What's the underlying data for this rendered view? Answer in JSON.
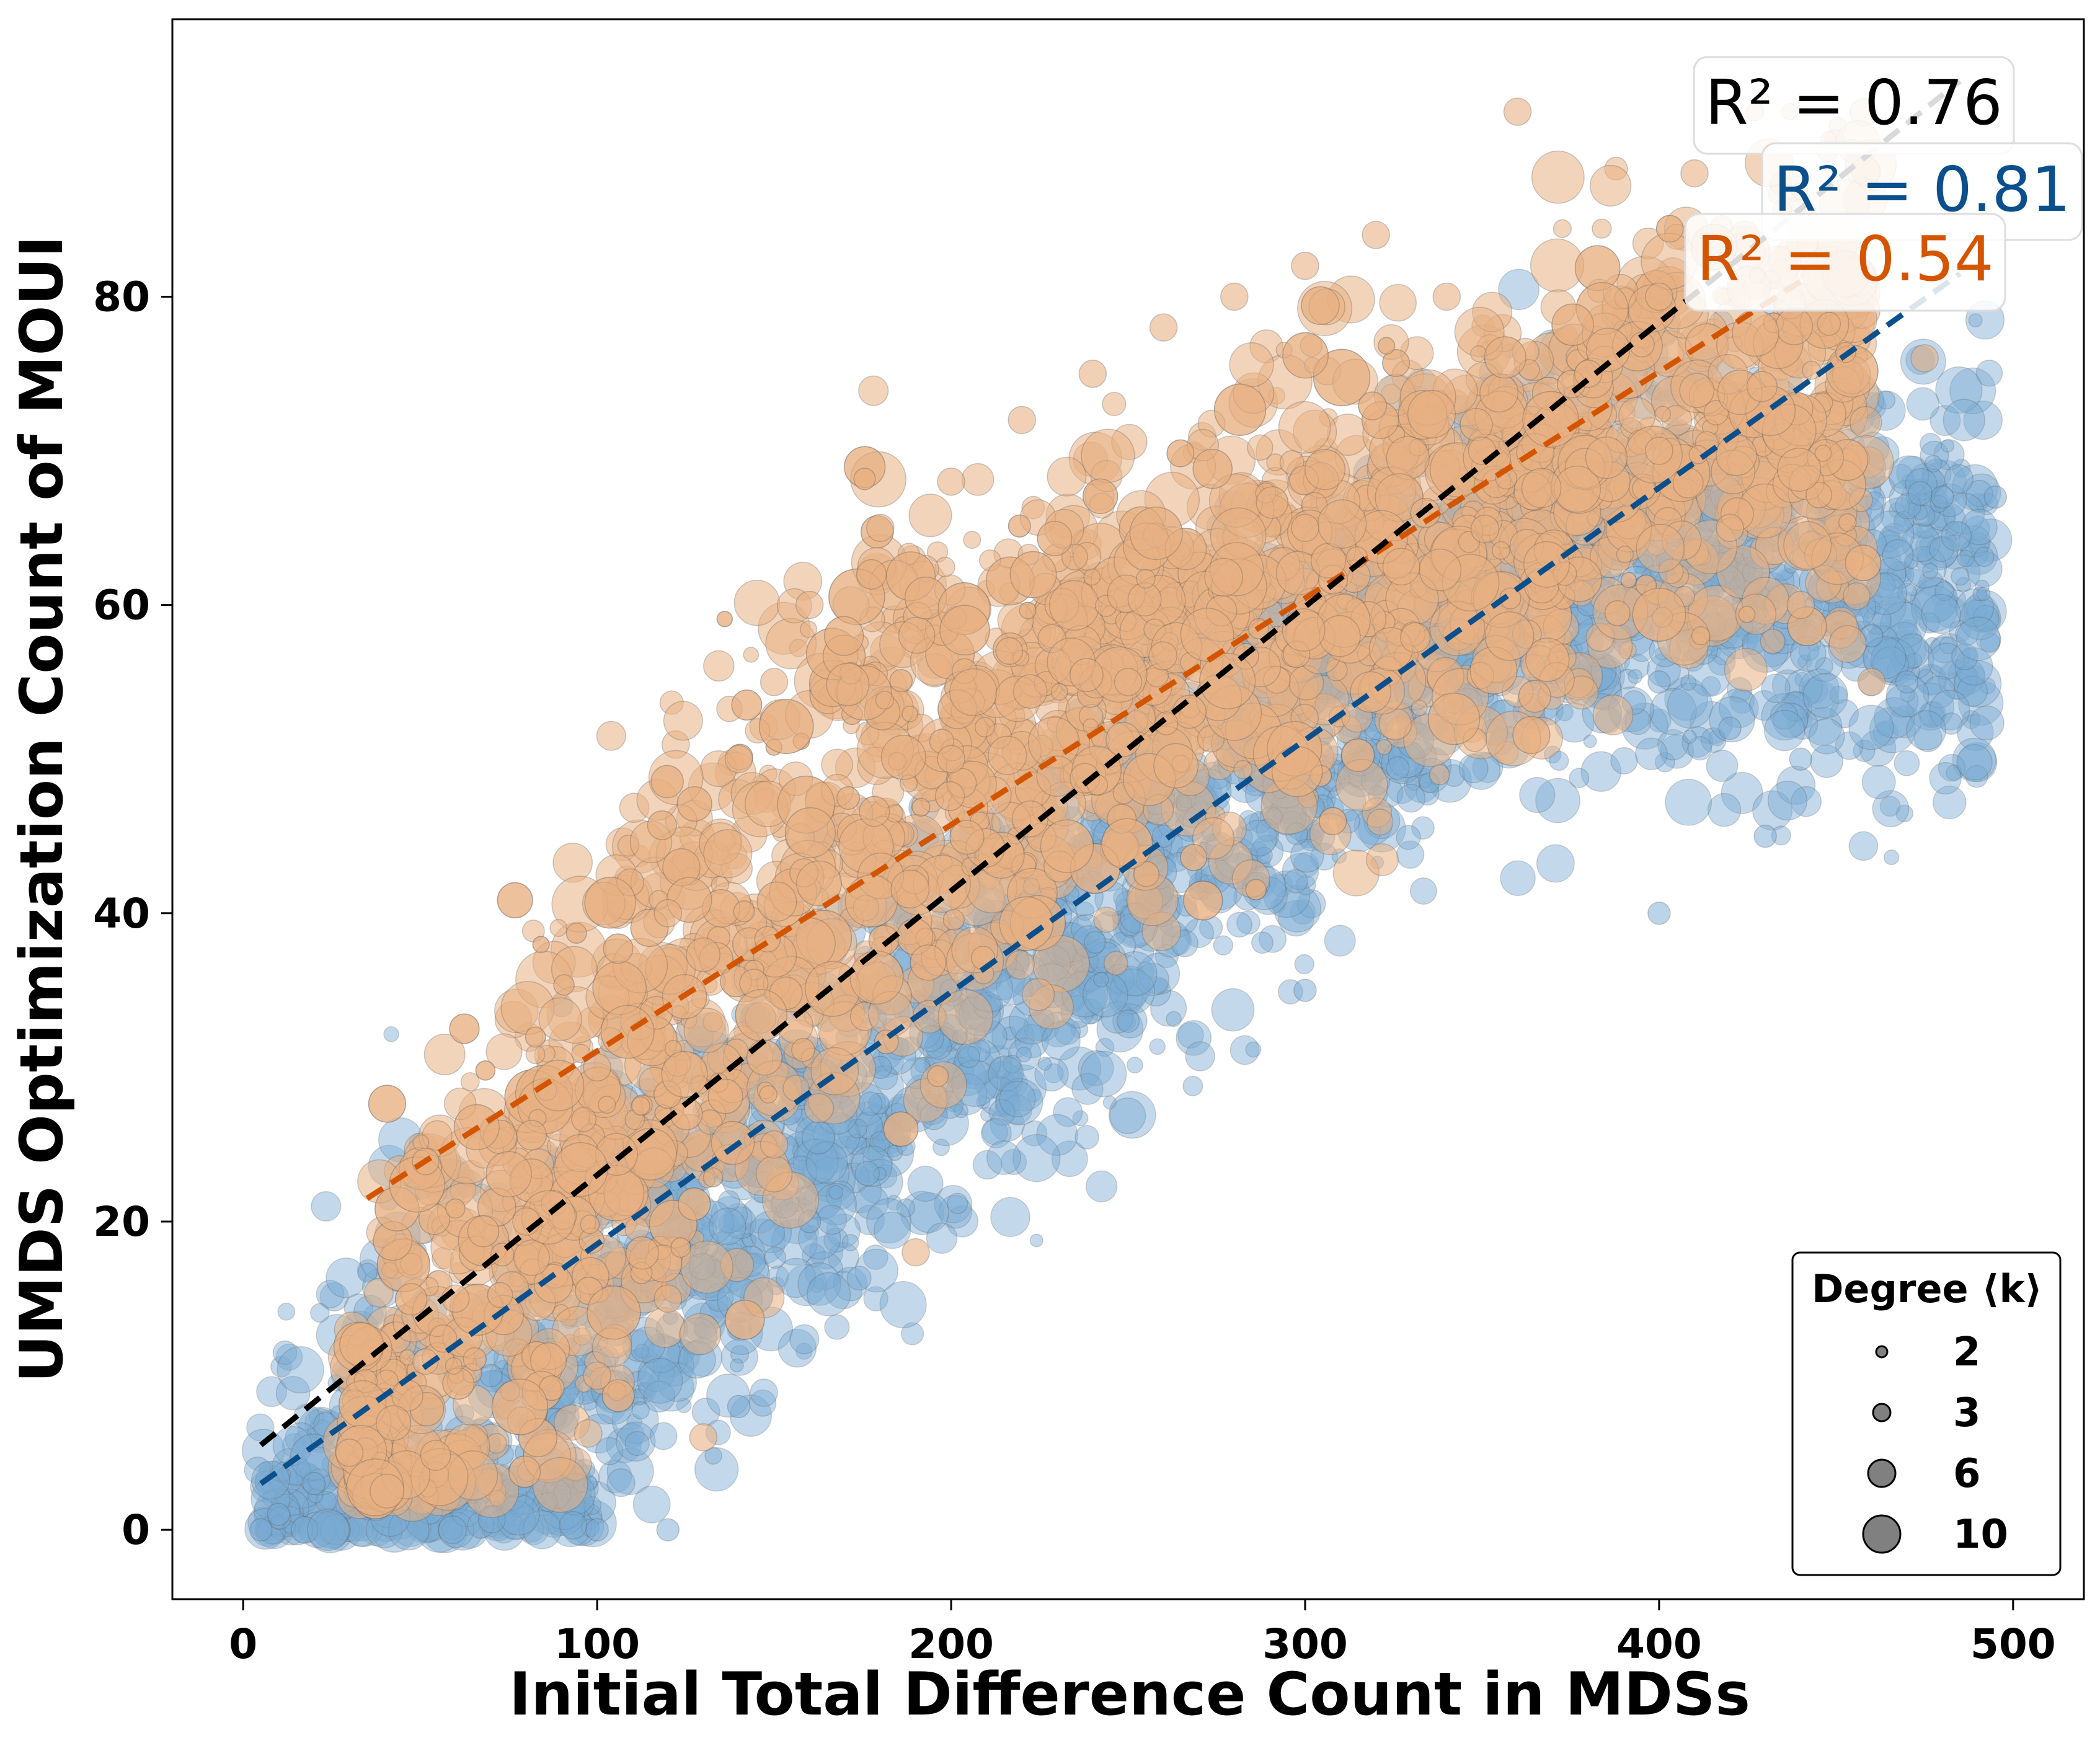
{
  "chart_data": {
    "type": "scatter",
    "xlabel": "Initial Total Difference Count in MDSs",
    "ylabel": "UMDS Optimization Count of MOUI",
    "xlim": [
      -20,
      520
    ],
    "ylim": [
      -4.5,
      98
    ],
    "xticks": [
      0,
      100,
      200,
      300,
      400,
      500
    ],
    "yticks": [
      0,
      20,
      40,
      60,
      80
    ],
    "xtick_labels": [
      "0",
      "100",
      "200",
      "300",
      "400",
      "500"
    ],
    "ytick_labels": [
      "0",
      "20",
      "40",
      "60",
      "80"
    ],
    "grid": false,
    "series": [
      {
        "color": "#7aaad3",
        "approx_points": [
          [
            5,
            0
          ],
          [
            10,
            1
          ],
          [
            20,
            3
          ],
          [
            30,
            6
          ],
          [
            40,
            9
          ],
          [
            50,
            12
          ],
          [
            50,
            25
          ],
          [
            60,
            2
          ],
          [
            80,
            5
          ],
          [
            100,
            0
          ],
          [
            90,
            34
          ],
          [
            120,
            30
          ],
          [
            140,
            8
          ],
          [
            160,
            20
          ],
          [
            180,
            30
          ],
          [
            200,
            35
          ],
          [
            220,
            40
          ],
          [
            240,
            42
          ],
          [
            260,
            45
          ],
          [
            280,
            50
          ],
          [
            300,
            48
          ],
          [
            320,
            52
          ],
          [
            340,
            55
          ],
          [
            360,
            58
          ],
          [
            380,
            60
          ],
          [
            400,
            55
          ],
          [
            420,
            52
          ],
          [
            440,
            50
          ],
          [
            460,
            58
          ],
          [
            470,
            55
          ],
          [
            480,
            67
          ],
          [
            495,
            67
          ],
          [
            430,
            45
          ],
          [
            400,
            40
          ],
          [
            300,
            35
          ],
          [
            250,
            33
          ],
          [
            120,
            0
          ],
          [
            70,
            10
          ]
        ],
        "fit_line": {
          "x": [
            5,
            485
          ],
          "y": [
            3,
            81.5
          ]
        }
      },
      {
        "color": "#e8b084",
        "approx_points": [
          [
            30,
            5
          ],
          [
            60,
            15
          ],
          [
            80,
            20
          ],
          [
            100,
            30
          ],
          [
            120,
            40
          ],
          [
            140,
            50
          ],
          [
            150,
            55
          ],
          [
            160,
            60
          ],
          [
            180,
            65
          ],
          [
            200,
            68
          ],
          [
            220,
            72
          ],
          [
            240,
            75
          ],
          [
            260,
            78
          ],
          [
            280,
            80
          ],
          [
            300,
            82
          ],
          [
            320,
            84
          ],
          [
            340,
            80
          ],
          [
            360,
            92
          ],
          [
            380,
            75
          ],
          [
            400,
            70
          ],
          [
            420,
            65
          ],
          [
            440,
            60
          ],
          [
            460,
            55
          ],
          [
            475,
            76
          ],
          [
            200,
            50
          ],
          [
            150,
            25
          ],
          [
            120,
            15
          ],
          [
            100,
            10
          ],
          [
            130,
            6
          ],
          [
            190,
            18
          ],
          [
            250,
            55
          ],
          [
            300,
            65
          ],
          [
            350,
            70
          ],
          [
            400,
            80
          ],
          [
            410,
            88
          ]
        ],
        "fit_line": {
          "x": [
            35,
            440
          ],
          "y": [
            21.5,
            81
          ]
        }
      }
    ],
    "overall_fit_line": {
      "color": "#000000",
      "x": [
        5,
        485
      ],
      "y": [
        5.5,
        94
      ]
    },
    "r2_annotations": [
      {
        "text": "R² = 0.76",
        "color": "#000000"
      },
      {
        "text": "R² = 0.81",
        "color": "#0b4f8c"
      },
      {
        "text": "R² = 0.54",
        "color": "#d45500"
      }
    ],
    "legend": {
      "title": "Degree ⟨k⟩",
      "location": "bottom-right",
      "entries": [
        "2",
        "3",
        "6",
        "10"
      ],
      "marker_color": "#808080"
    }
  }
}
